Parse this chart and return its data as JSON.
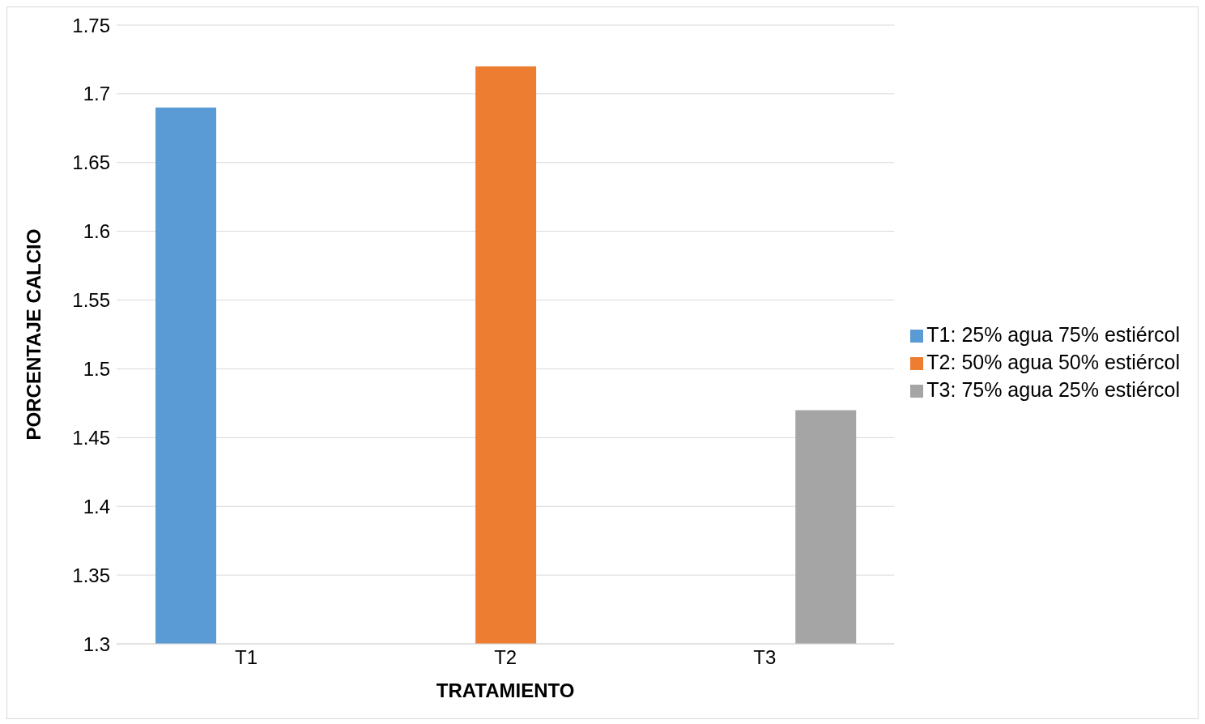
{
  "chart_data": {
    "type": "bar",
    "xlabel": "TRATAMIENTO",
    "ylabel": "PORCENTAJE CALCIO",
    "categories": [
      "T1",
      "T2",
      "T3"
    ],
    "series": [
      {
        "name": "T1: 25% agua 75% estiércol",
        "color": "#5b9bd5",
        "values": [
          1.69,
          null,
          null
        ]
      },
      {
        "name": "T2: 50% agua 50% estiércol",
        "color": "#ed7d31",
        "values": [
          null,
          1.72,
          null
        ]
      },
      {
        "name": "T3: 75% agua 25% estiércol",
        "color": "#a5a5a5",
        "values": [
          null,
          null,
          1.47
        ]
      }
    ],
    "ylim": [
      1.3,
      1.75
    ],
    "yticks": [
      1.3,
      1.35,
      1.4,
      1.45,
      1.5,
      1.55,
      1.6,
      1.65,
      1.7,
      1.75
    ],
    "grid": "y",
    "legend": "right"
  }
}
